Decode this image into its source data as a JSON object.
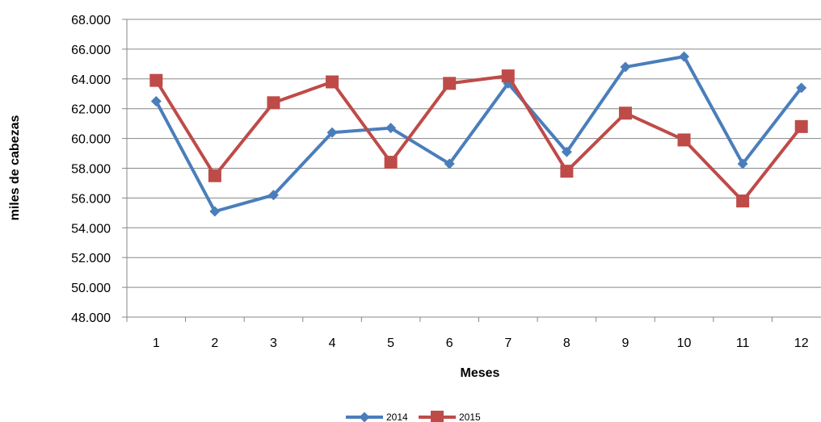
{
  "chart_data": {
    "type": "line",
    "title": "",
    "xlabel": "Meses",
    "ylabel": "miles de cabezas",
    "categories": [
      "1",
      "2",
      "3",
      "4",
      "5",
      "6",
      "7",
      "8",
      "9",
      "10",
      "11",
      "12"
    ],
    "y_ticks": [
      "48.000",
      "50.000",
      "52.000",
      "54.000",
      "56.000",
      "58.000",
      "60.000",
      "62.000",
      "64.000",
      "66.000",
      "68.000"
    ],
    "ylim": [
      48000,
      68000
    ],
    "grid": true,
    "legend_position": "bottom",
    "series": [
      {
        "name": "2014",
        "color": "#4a7ebb",
        "marker": "diamond",
        "values": [
          62500,
          55100,
          56200,
          60400,
          60700,
          58300,
          63700,
          59100,
          64800,
          65500,
          58300,
          63400
        ]
      },
      {
        "name": "2015",
        "color": "#be4b48",
        "marker": "square",
        "values": [
          63900,
          57500,
          62400,
          63800,
          58400,
          63700,
          64200,
          57800,
          61700,
          59900,
          55800,
          60800
        ]
      }
    ]
  }
}
